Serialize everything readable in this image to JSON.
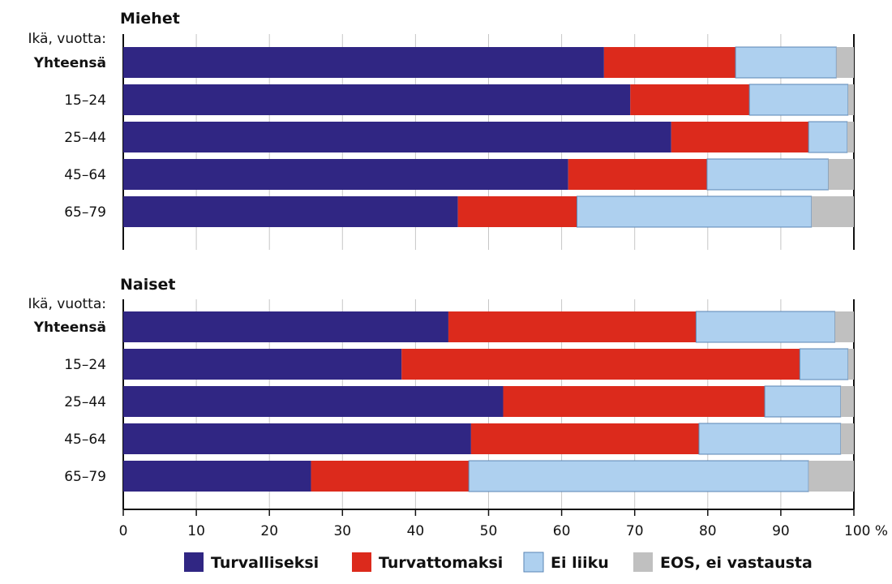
{
  "chart_data": {
    "type": "bar",
    "orientation": "horizontal",
    "stacked": true,
    "xlim": [
      0,
      100
    ],
    "x_ticks": [
      "0",
      "10",
      "20",
      "30",
      "40",
      "50",
      "60",
      "70",
      "80",
      "90",
      "100 %"
    ],
    "grid": true,
    "legend_position": "bottom",
    "series": [
      {
        "name": "Turvalliseksi",
        "color": "#302683"
      },
      {
        "name": "Turvattomaksi",
        "color": "#dc2a1c"
      },
      {
        "name": "Ei liiku",
        "color": "#aed0ef"
      },
      {
        "name": "EOS, ei vastausta",
        "color": "#c0c0c0"
      }
    ],
    "panels": [
      {
        "title": "Miehet",
        "category_caption": "Ikä, vuotta:",
        "categories": [
          "Yhteensä",
          "15–24",
          "25–44",
          "45–64",
          "65–79"
        ],
        "values": [
          [
            65.8,
            18.0,
            13.8,
            2.4
          ],
          [
            69.4,
            16.3,
            13.5,
            0.8
          ],
          [
            75.0,
            18.8,
            5.3,
            0.9
          ],
          [
            60.9,
            19.0,
            16.6,
            3.5
          ],
          [
            45.8,
            16.3,
            32.1,
            5.8
          ]
        ]
      },
      {
        "title": "Naiset",
        "category_caption": "Ikä, vuotta:",
        "categories": [
          "Yhteensä",
          "15–24",
          "25–44",
          "45–64",
          "65–79"
        ],
        "values": [
          [
            44.5,
            33.9,
            19.0,
            2.6
          ],
          [
            38.1,
            54.5,
            6.6,
            0.8
          ],
          [
            52.0,
            35.8,
            10.4,
            1.8
          ],
          [
            47.6,
            31.2,
            19.4,
            1.8
          ],
          [
            25.7,
            21.6,
            46.5,
            6.2
          ]
        ]
      }
    ]
  }
}
